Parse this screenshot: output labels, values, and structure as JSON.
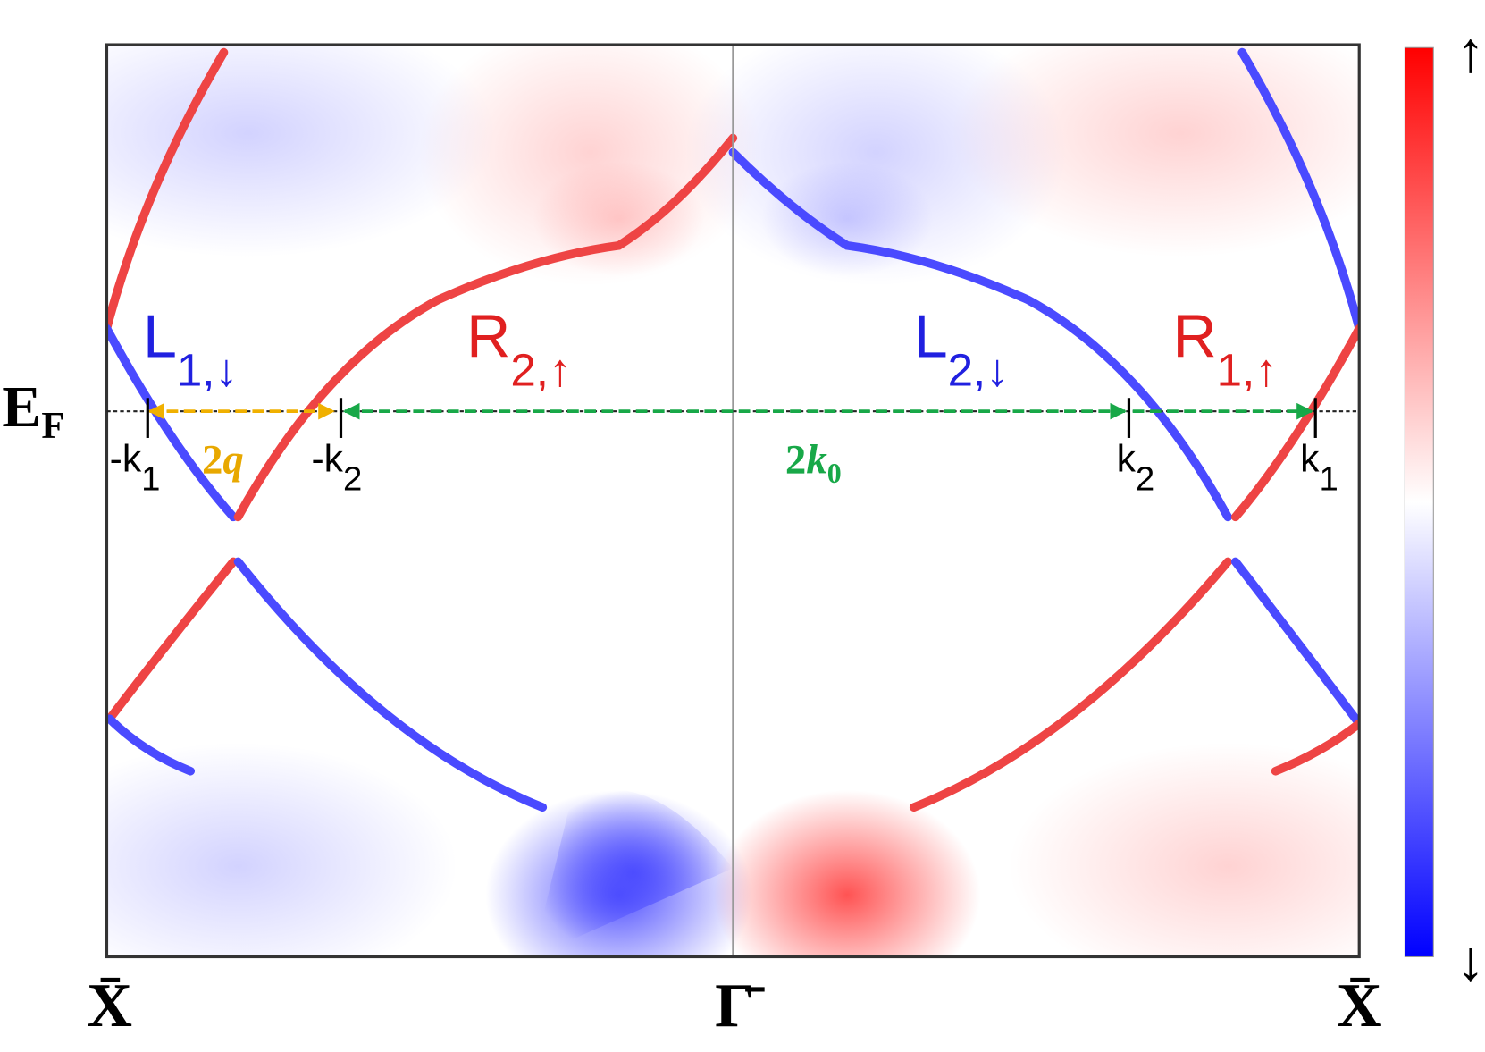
{
  "y_label": {
    "main": "E",
    "sub": "F"
  },
  "x_labels": [
    "X̄",
    "Γ̄",
    "X̄"
  ],
  "bands": [
    {
      "name": "L",
      "sub": "1,↓"
    },
    {
      "name": "R",
      "sub": "2,↑"
    },
    {
      "name": "L",
      "sub": "2,↓"
    },
    {
      "name": "R",
      "sub": "1,↑"
    }
  ],
  "spans": [
    {
      "main": "2",
      "var": "q",
      "sub": ""
    },
    {
      "main": "2",
      "var": "k",
      "sub": "0"
    }
  ],
  "k_points": [
    {
      "name": "-k",
      "sub": "1"
    },
    {
      "name": "-k",
      "sub": "2"
    },
    {
      "name": "k",
      "sub": "2"
    },
    {
      "name": "k",
      "sub": "1"
    }
  ],
  "colorbar": {
    "top": "↑",
    "bottom": "↓"
  }
}
